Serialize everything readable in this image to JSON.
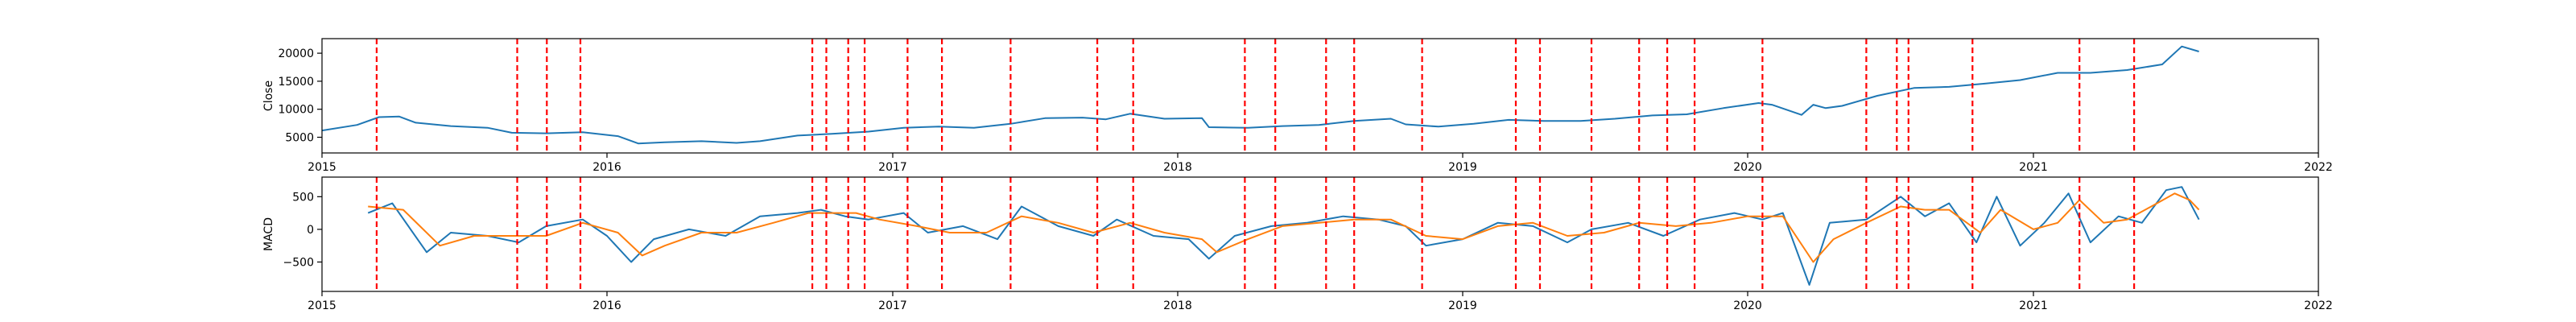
{
  "colors": {
    "close": "#1f77b4",
    "macd": "#1f77b4",
    "signal": "#ff7f0e",
    "marker": "#ff0000",
    "axis": "#000000",
    "background": "#ffffff"
  },
  "chart_data": [
    {
      "type": "line",
      "ylabel": "Close",
      "xlim": [
        "2015-01-01",
        "2022-01-01"
      ],
      "ylim": [
        2200,
        22600
      ],
      "x_ticks": [
        "2015",
        "2016",
        "2017",
        "2018",
        "2019",
        "2020",
        "2021",
        "2022"
      ],
      "y_ticks": [
        5000,
        10000,
        15000,
        20000
      ],
      "y_tick_labels": [
        "5000",
        "10000",
        "15000",
        "20000"
      ],
      "grid": false,
      "legend": "none",
      "series": [
        {
          "role": "close",
          "x": [
            "2015-01-01",
            "2015-02-15",
            "2015-03-15",
            "2015-04-10",
            "2015-05-01",
            "2015-06-15",
            "2015-08-01",
            "2015-09-01",
            "2015-10-15",
            "2015-12-01",
            "2016-01-15",
            "2016-02-10",
            "2016-03-15",
            "2016-05-01",
            "2016-06-15",
            "2016-07-15",
            "2016-09-01",
            "2016-10-15",
            "2016-12-01",
            "2017-01-15",
            "2017-03-01",
            "2017-04-15",
            "2017-06-01",
            "2017-07-15",
            "2017-09-01",
            "2017-10-01",
            "2017-11-01",
            "2017-12-15",
            "2018-02-01",
            "2018-02-10",
            "2018-04-01",
            "2018-05-15",
            "2018-07-01",
            "2018-08-15",
            "2018-10-01",
            "2018-10-20",
            "2018-12-01",
            "2019-01-15",
            "2019-03-01",
            "2019-04-15",
            "2019-06-01",
            "2019-07-15",
            "2019-09-01",
            "2019-10-15",
            "2019-12-01",
            "2020-01-15",
            "2020-02-01",
            "2020-03-10",
            "2020-03-25",
            "2020-04-10",
            "2020-05-01",
            "2020-06-15",
            "2020-08-01",
            "2020-09-15",
            "2020-11-01",
            "2020-12-15",
            "2021-02-01",
            "2021-03-15",
            "2021-05-01",
            "2021-06-15",
            "2021-07-10",
            "2021-08-01"
          ],
          "y": [
            6200,
            7200,
            8600,
            8700,
            7600,
            7000,
            6700,
            5800,
            5700,
            5900,
            5200,
            3900,
            4100,
            4300,
            4000,
            4300,
            5300,
            5600,
            6000,
            6700,
            6900,
            6700,
            7400,
            8400,
            8500,
            8200,
            9200,
            8300,
            8400,
            6800,
            6700,
            7000,
            7200,
            7900,
            8300,
            7300,
            6900,
            7400,
            8100,
            7900,
            7900,
            8300,
            8900,
            9100,
            10200,
            11100,
            10800,
            9000,
            10800,
            10200,
            10600,
            12400,
            13800,
            14000,
            14600,
            15200,
            16500,
            16500,
            17000,
            18000,
            21200,
            20300
          ]
        }
      ],
      "vertical_markers": [
        "2015-03-12",
        "2015-09-08",
        "2015-10-16",
        "2015-11-28",
        "2016-09-20",
        "2016-10-08",
        "2016-11-05",
        "2016-11-26",
        "2017-01-20",
        "2017-03-05",
        "2017-06-01",
        "2017-09-20",
        "2017-11-05",
        "2018-03-28",
        "2018-05-06",
        "2018-07-10",
        "2018-08-15",
        "2018-11-10",
        "2019-03-10",
        "2019-04-10",
        "2019-06-15",
        "2019-08-15",
        "2019-09-20",
        "2019-10-25",
        "2020-01-20",
        "2020-06-01",
        "2020-07-10",
        "2020-07-25",
        "2020-10-15",
        "2021-03-01",
        "2021-05-10"
      ]
    },
    {
      "type": "line",
      "ylabel": "MACD",
      "xlim": [
        "2015-01-01",
        "2022-01-01"
      ],
      "ylim": [
        -950,
        800
      ],
      "x_ticks": [
        "2015",
        "2016",
        "2017",
        "2018",
        "2019",
        "2020",
        "2021",
        "2022"
      ],
      "y_ticks": [
        -500,
        0,
        500
      ],
      "y_tick_labels": [
        "−500",
        "0",
        "500"
      ],
      "grid": false,
      "legend": "none",
      "series": [
        {
          "role": "macd",
          "x": [
            "2015-03-01",
            "2015-04-01",
            "2015-05-15",
            "2015-06-15",
            "2015-08-01",
            "2015-09-10",
            "2015-10-15",
            "2015-12-01",
            "2016-01-01",
            "2016-02-01",
            "2016-03-01",
            "2016-04-15",
            "2016-06-01",
            "2016-07-15",
            "2016-09-01",
            "2016-10-01",
            "2016-11-01",
            "2016-12-01",
            "2017-01-15",
            "2017-02-15",
            "2017-04-01",
            "2017-05-15",
            "2017-06-15",
            "2017-08-01",
            "2017-09-15",
            "2017-10-15",
            "2017-12-01",
            "2018-01-15",
            "2018-02-10",
            "2018-03-15",
            "2018-05-01",
            "2018-06-15",
            "2018-08-01",
            "2018-09-15",
            "2018-10-20",
            "2018-11-15",
            "2019-01-01",
            "2019-02-15",
            "2019-04-01",
            "2019-05-15",
            "2019-06-15",
            "2019-08-01",
            "2019-09-15",
            "2019-11-01",
            "2019-12-15",
            "2020-01-20",
            "2020-02-15",
            "2020-03-20",
            "2020-04-15",
            "2020-06-01",
            "2020-07-15",
            "2020-08-15",
            "2020-09-15",
            "2020-10-20",
            "2020-11-15",
            "2020-12-15",
            "2021-01-15",
            "2021-02-15",
            "2021-03-15",
            "2021-04-20",
            "2021-05-20",
            "2021-06-20",
            "2021-07-10",
            "2021-08-01"
          ],
          "y": [
            250,
            400,
            -350,
            -50,
            -100,
            -200,
            50,
            150,
            -100,
            -500,
            -150,
            0,
            -100,
            200,
            250,
            300,
            200,
            150,
            250,
            -50,
            50,
            -150,
            350,
            50,
            -100,
            150,
            -100,
            -150,
            -450,
            -100,
            50,
            100,
            200,
            150,
            50,
            -250,
            -150,
            100,
            50,
            -200,
            0,
            100,
            -100,
            150,
            250,
            150,
            250,
            -850,
            100,
            150,
            500,
            200,
            400,
            -200,
            500,
            -250,
            100,
            550,
            -200,
            200,
            100,
            600,
            650,
            150
          ]
        },
        {
          "role": "signal",
          "x": [
            "2015-03-01",
            "2015-04-15",
            "2015-06-01",
            "2015-07-15",
            "2015-09-01",
            "2015-10-15",
            "2015-12-01",
            "2016-01-15",
            "2016-02-15",
            "2016-03-15",
            "2016-05-01",
            "2016-06-15",
            "2016-08-01",
            "2016-09-15",
            "2016-10-15",
            "2016-11-15",
            "2016-12-15",
            "2017-02-01",
            "2017-03-15",
            "2017-05-01",
            "2017-06-15",
            "2017-08-01",
            "2017-09-15",
            "2017-11-01",
            "2017-12-15",
            "2018-02-01",
            "2018-02-20",
            "2018-04-01",
            "2018-05-15",
            "2018-07-01",
            "2018-08-15",
            "2018-10-01",
            "2018-11-15",
            "2019-01-01",
            "2019-02-15",
            "2019-04-01",
            "2019-05-15",
            "2019-07-01",
            "2019-08-15",
            "2019-10-01",
            "2019-11-15",
            "2020-01-01",
            "2020-02-15",
            "2020-03-25",
            "2020-04-20",
            "2020-06-01",
            "2020-07-15",
            "2020-08-15",
            "2020-09-15",
            "2020-10-25",
            "2020-11-20",
            "2021-01-01",
            "2021-02-01",
            "2021-03-01",
            "2021-04-01",
            "2021-05-01",
            "2021-06-01",
            "2021-07-01",
            "2021-07-20",
            "2021-08-01"
          ],
          "y": [
            350,
            300,
            -250,
            -100,
            -100,
            -100,
            100,
            -50,
            -400,
            -250,
            -50,
            -50,
            100,
            250,
            250,
            250,
            150,
            50,
            -50,
            -50,
            200,
            100,
            -50,
            100,
            -50,
            -150,
            -350,
            -150,
            50,
            100,
            150,
            150,
            -100,
            -150,
            50,
            100,
            -100,
            -50,
            100,
            50,
            100,
            200,
            200,
            -500,
            -150,
            100,
            350,
            300,
            300,
            -50,
            300,
            0,
            100,
            450,
            100,
            150,
            350,
            550,
            450,
            300
          ]
        }
      ],
      "vertical_markers": [
        "2015-03-12",
        "2015-09-08",
        "2015-10-16",
        "2015-11-28",
        "2016-09-20",
        "2016-10-08",
        "2016-11-05",
        "2016-11-26",
        "2017-01-20",
        "2017-03-05",
        "2017-06-01",
        "2017-09-20",
        "2017-11-05",
        "2018-03-28",
        "2018-05-06",
        "2018-07-10",
        "2018-08-15",
        "2018-11-10",
        "2019-03-10",
        "2019-04-10",
        "2019-06-15",
        "2019-08-15",
        "2019-09-20",
        "2019-10-25",
        "2020-01-20",
        "2020-06-01",
        "2020-07-10",
        "2020-07-25",
        "2020-10-15",
        "2021-03-01",
        "2021-05-10"
      ]
    }
  ]
}
